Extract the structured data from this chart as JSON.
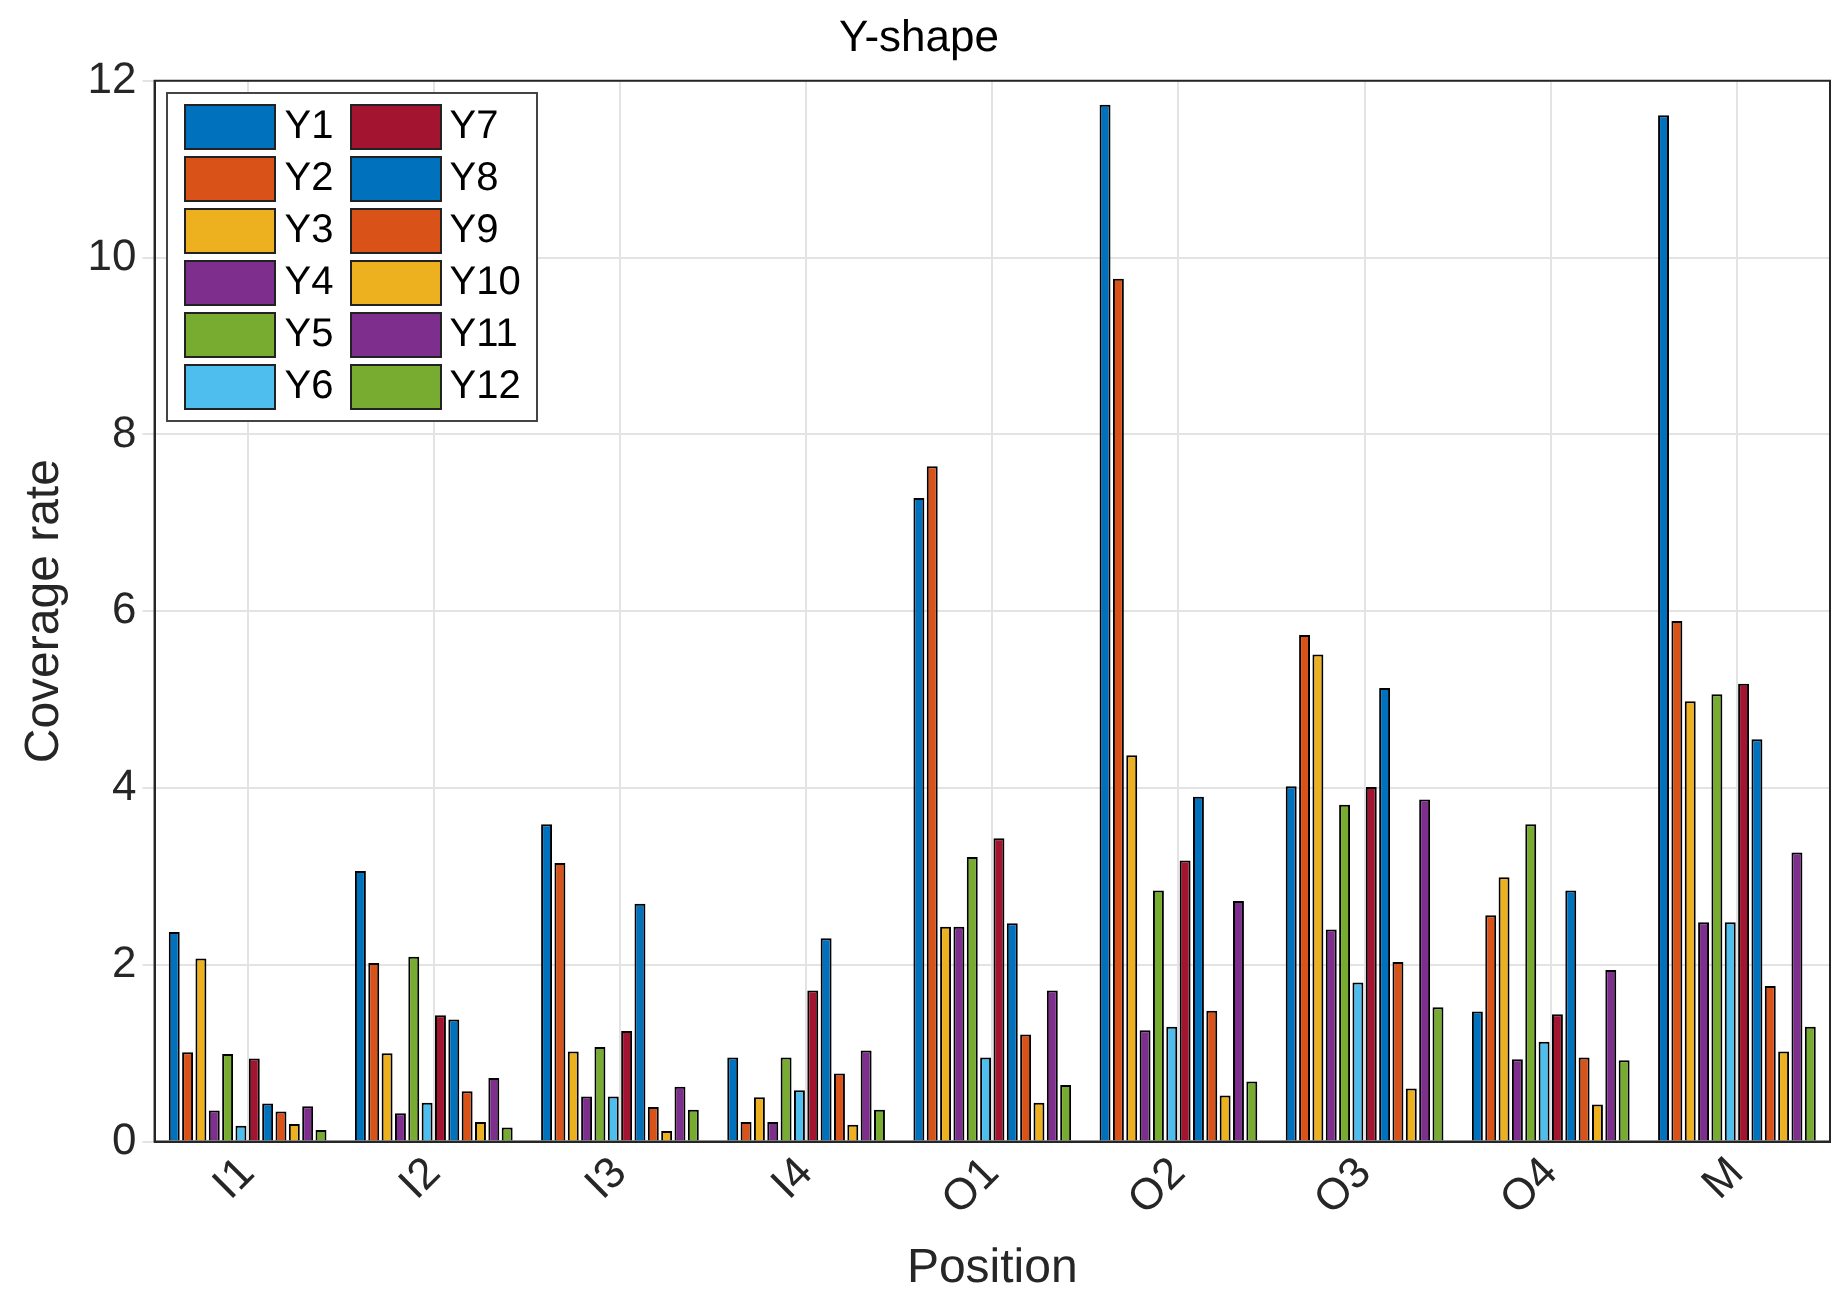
{
  "chart_data": {
    "type": "bar",
    "title": "Y-shape",
    "xlabel": "Position",
    "ylabel": "Coverage rate",
    "categories": [
      "I1",
      "I2",
      "I3",
      "I4",
      "O1",
      "O2",
      "O3",
      "O4",
      "M"
    ],
    "ylim": [
      0,
      12
    ],
    "yticks": [
      0,
      2,
      4,
      6,
      8,
      10,
      12
    ],
    "grid": true,
    "legend": "top left",
    "series": [
      {
        "name": "Y1",
        "color": "#0072bd",
        "values": [
          2.37,
          3.06,
          3.59,
          0.95,
          7.28,
          11.73,
          4.02,
          1.47,
          11.61
        ]
      },
      {
        "name": "Y2",
        "color": "#d95319",
        "values": [
          1.01,
          2.02,
          3.15,
          0.22,
          7.64,
          9.76,
          5.73,
          2.56,
          5.89
        ]
      },
      {
        "name": "Y3",
        "color": "#edb120",
        "values": [
          2.07,
          1.0,
          1.02,
          0.5,
          2.43,
          4.37,
          5.51,
          2.99,
          4.98
        ]
      },
      {
        "name": "Y4",
        "color": "#7e2f8e",
        "values": [
          0.35,
          0.32,
          0.51,
          0.22,
          2.43,
          1.26,
          2.4,
          0.93,
          2.48
        ]
      },
      {
        "name": "Y5",
        "color": "#77ac30",
        "values": [
          0.99,
          2.09,
          1.07,
          0.95,
          3.22,
          2.84,
          3.81,
          3.59,
          5.06
        ]
      },
      {
        "name": "Y6",
        "color": "#4dbeee",
        "values": [
          0.18,
          0.44,
          0.51,
          0.58,
          0.95,
          1.3,
          1.8,
          1.13,
          2.48
        ]
      },
      {
        "name": "Y7",
        "color": "#a2142f",
        "values": [
          0.94,
          1.43,
          1.25,
          1.71,
          3.43,
          3.18,
          4.01,
          1.44,
          5.18
        ]
      },
      {
        "name": "Y8",
        "color": "#0072bd",
        "values": [
          0.43,
          1.38,
          2.69,
          2.3,
          2.47,
          3.9,
          5.13,
          2.84,
          4.55
        ]
      },
      {
        "name": "Y9",
        "color": "#d95319",
        "values": [
          0.34,
          0.57,
          0.39,
          0.77,
          1.21,
          1.48,
          2.03,
          0.95,
          1.76
        ]
      },
      {
        "name": "Y10",
        "color": "#edb120",
        "values": [
          0.2,
          0.22,
          0.12,
          0.19,
          0.44,
          0.52,
          0.6,
          0.42,
          1.02
        ]
      },
      {
        "name": "Y11",
        "color": "#7e2f8e",
        "values": [
          0.4,
          0.72,
          0.62,
          1.03,
          1.71,
          2.72,
          3.87,
          1.94,
          3.27
        ]
      },
      {
        "name": "Y12",
        "color": "#77ac30",
        "values": [
          0.13,
          0.16,
          0.36,
          0.36,
          0.64,
          0.68,
          1.52,
          0.92,
          1.3
        ]
      }
    ]
  }
}
